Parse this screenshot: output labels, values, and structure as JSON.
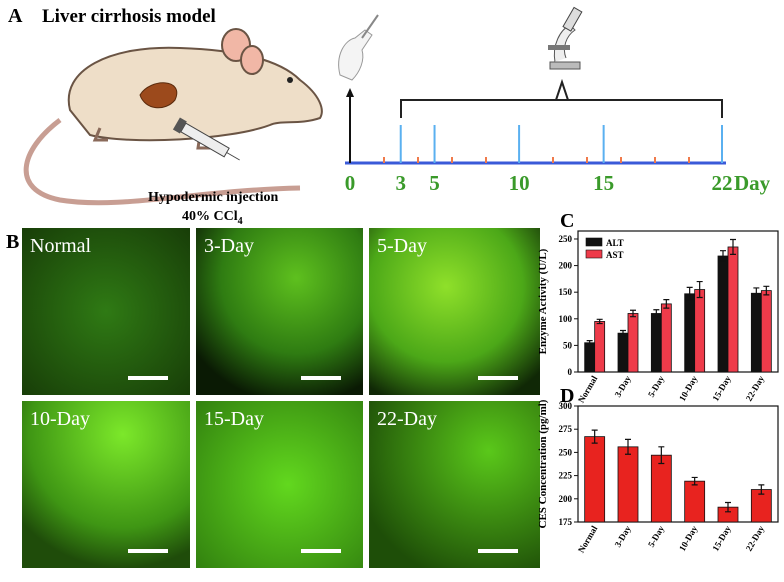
{
  "panel_a": {
    "label": "A",
    "title": "Liver cirrhosis model",
    "injection_label": "Hypodermic injection",
    "dose": "40% CCl",
    "dose_subscript": "4",
    "timeline_days": [
      0,
      3,
      5,
      10,
      15,
      22
    ],
    "timeline_unit": "Day"
  },
  "panel_b": {
    "label": "B",
    "images": [
      "Normal",
      "3-Day",
      "5-Day",
      "10-Day",
      "15-Day",
      "22-Day"
    ]
  },
  "chart_data": [
    {
      "type": "bar",
      "panel_label": "C",
      "y_label": "Enzyme Activity (U/L)",
      "categories": [
        "Normal",
        "3-Day",
        "5-Day",
        "10-Day",
        "15-Day",
        "22-Day"
      ],
      "series": [
        {
          "name": "ALT",
          "color": "#111111",
          "values": [
            55,
            73,
            110,
            147,
            218,
            148
          ],
          "errors": [
            4,
            5,
            7,
            12,
            10,
            10
          ]
        },
        {
          "name": "AST",
          "color": "#ee3b4a",
          "values": [
            95,
            110,
            128,
            155,
            235,
            153
          ],
          "errors": [
            4,
            6,
            8,
            15,
            14,
            8
          ]
        }
      ],
      "ylim": [
        0,
        265
      ],
      "yticks": [
        0,
        50,
        100,
        150,
        200,
        250
      ],
      "legend": "upper left"
    },
    {
      "type": "bar",
      "panel_label": "D",
      "y_label": "CES Concentration (pg/ml)",
      "categories": [
        "Normal",
        "3-Day",
        "5-Day",
        "10-Day",
        "15-Day",
        "22-Day"
      ],
      "values": [
        267,
        256,
        247,
        219,
        191,
        210
      ],
      "errors": [
        7,
        8,
        9,
        4,
        5,
        5
      ],
      "color": "#e8231f",
      "ylim": [
        175,
        300
      ],
      "yticks": [
        175,
        200,
        225,
        250,
        275,
        300
      ]
    }
  ]
}
